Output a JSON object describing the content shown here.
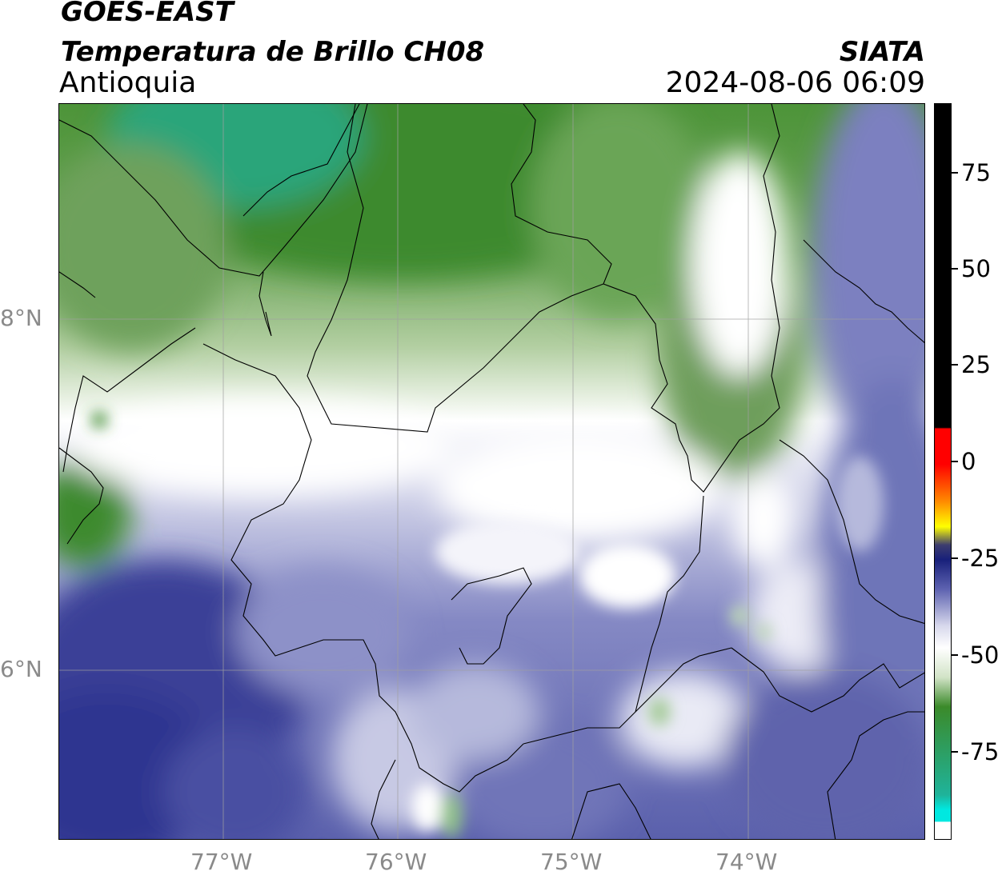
{
  "header": {
    "satellite": "GOES-EAST",
    "product": "Temperatura de Brillo CH08",
    "region": "Antioquia",
    "agency": "SIATA",
    "datetime": "2024-08-06 06:09"
  },
  "map": {
    "lon_labels": [
      "77°W",
      "76°W",
      "75°W",
      "74°W"
    ],
    "lat_labels": [
      "8°N",
      "6°N"
    ],
    "gridline_color": "#a0a0a0",
    "colors": {
      "cold_blue": "#2e3590",
      "mid_blue": "#5c63ad",
      "light_lavender": "#c4c6e2",
      "white": "#ffffff",
      "light_green": "#b9d4a8",
      "green": "#5f9a4a",
      "dark_green": "#3f8a2e",
      "teal": "#2aa57a"
    }
  },
  "colorbar": {
    "ticks": [
      "75",
      "50",
      "25",
      "0",
      "-25",
      "-50",
      "-75"
    ],
    "colors": [
      "#ffffff",
      "#00e8e0",
      "#1fb39a",
      "#3b8a2a",
      "#d2e3c7",
      "#ffffff",
      "#5d62b0",
      "#18207a",
      "#ffff00",
      "#ff8800",
      "#ff0000",
      "#000000"
    ]
  }
}
